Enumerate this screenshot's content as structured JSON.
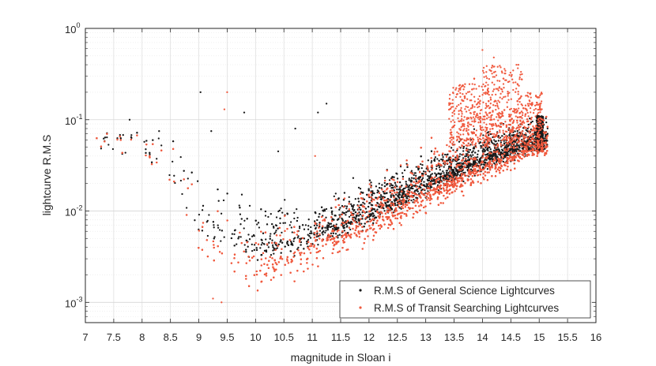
{
  "chart_data": {
    "type": "scatter",
    "title": "",
    "xlabel": "magnitude in Sloan i",
    "ylabel": "lightcurve R.M.S",
    "xlim": [
      7,
      16
    ],
    "ylim": [
      0.0006,
      1
    ],
    "yscale": "log",
    "grid": true,
    "x_ticks": [
      "7",
      "7.5",
      "8",
      "8.5",
      "9",
      "9.5",
      "10",
      "10.5",
      "11",
      "11.5",
      "12",
      "12.5",
      "13",
      "13.5",
      "14",
      "14.5",
      "15",
      "15.5",
      "16"
    ],
    "y_ticks": [
      {
        "value": 0.001,
        "base": "10",
        "exp": "-3"
      },
      {
        "value": 0.01,
        "base": "10",
        "exp": "-2"
      },
      {
        "value": 0.1,
        "base": "10",
        "exp": "-1"
      },
      {
        "value": 1,
        "base": "10",
        "exp": "0"
      }
    ],
    "legend_position": "bottom-right",
    "series": [
      {
        "name": "R.M.S of General Science Lightcurves",
        "color": "#1a1a1a",
        "sample_points": [
          [
            7.3,
            0.06
          ],
          [
            7.8,
            0.1
          ],
          [
            8.0,
            0.06
          ],
          [
            8.5,
            0.03
          ],
          [
            9.0,
            0.2
          ],
          [
            9.2,
            0.07
          ],
          [
            9.8,
            0.12
          ],
          [
            9.5,
            0.005
          ],
          [
            10.0,
            0.004
          ],
          [
            10.5,
            0.004
          ],
          [
            11.0,
            0.005
          ],
          [
            11.5,
            0.007
          ],
          [
            12.0,
            0.01
          ],
          [
            12.5,
            0.014
          ],
          [
            13.0,
            0.02
          ],
          [
            13.5,
            0.03
          ],
          [
            14.0,
            0.04
          ],
          [
            14.5,
            0.05
          ],
          [
            15.0,
            0.06
          ],
          [
            15.05,
            0.1
          ],
          [
            11.1,
            0.15
          ]
        ]
      },
      {
        "name": "R.M.S of Transit Searching Lightcurves",
        "color": "#f05a3f",
        "sample_points": [
          [
            7.5,
            0.06
          ],
          [
            8.0,
            0.05
          ],
          [
            8.5,
            0.025
          ],
          [
            8.9,
            0.006
          ],
          [
            9.3,
            0.002
          ],
          [
            9.5,
            0.2
          ],
          [
            10.0,
            0.0025
          ],
          [
            10.5,
            0.003
          ],
          [
            11.0,
            0.004
          ],
          [
            11.5,
            0.006
          ],
          [
            12.0,
            0.008
          ],
          [
            12.5,
            0.011
          ],
          [
            13.0,
            0.016
          ],
          [
            13.5,
            0.025
          ],
          [
            14.0,
            0.035
          ],
          [
            14.0,
            0.6
          ],
          [
            14.5,
            0.2
          ],
          [
            15.0,
            0.05
          ]
        ]
      }
    ]
  }
}
